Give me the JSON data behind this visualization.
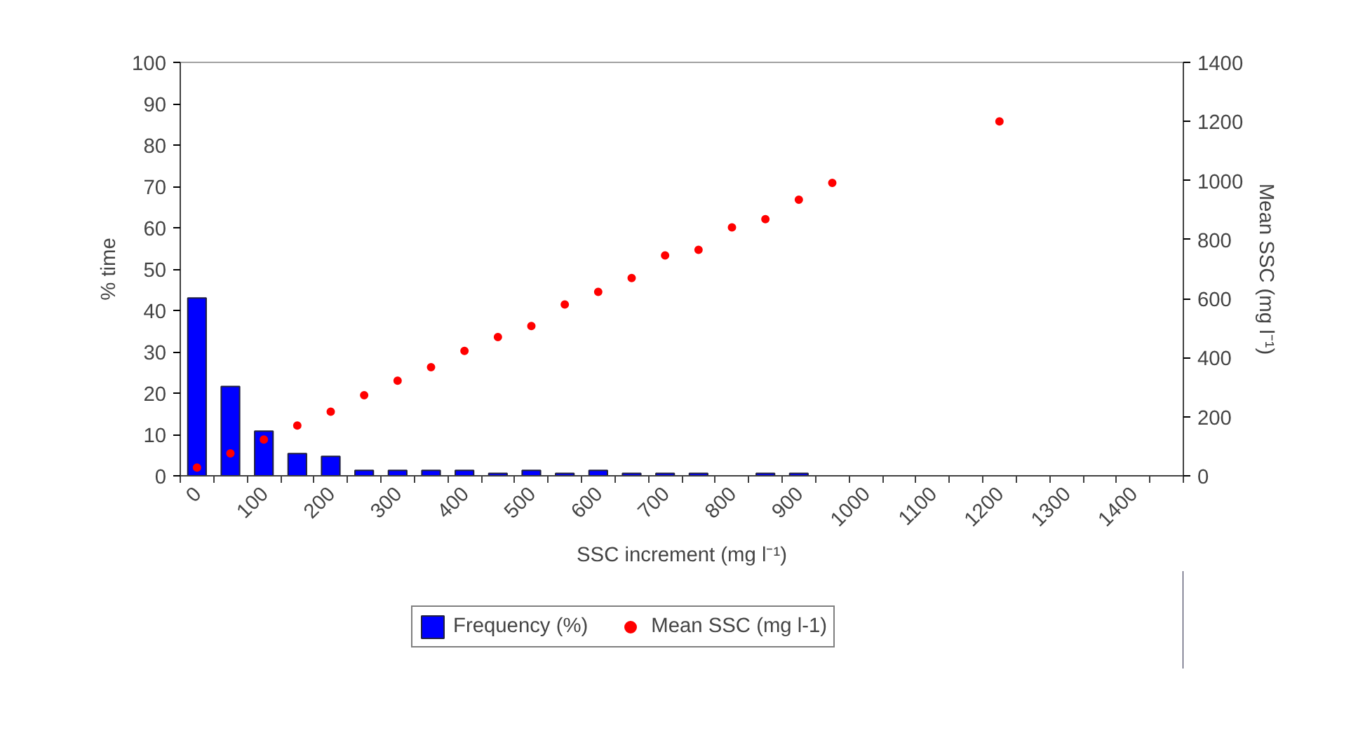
{
  "chart_data": {
    "type": "bar",
    "xlabel": "SSC increment (mg l⁻¹)",
    "ylabel": "% time",
    "y2label": "Mean SSC (mg l⁻¹)",
    "categories": [
      "0",
      null,
      "100",
      null,
      "200",
      null,
      "300",
      null,
      "400",
      null,
      "500",
      null,
      "600",
      null,
      "700",
      null,
      "800",
      null,
      "900",
      null,
      "1000",
      null,
      "1100",
      null,
      "1200",
      null,
      "1300",
      null,
      "1400",
      null
    ],
    "ylim": [
      0,
      100
    ],
    "yticks": [
      0,
      10,
      20,
      30,
      40,
      50,
      60,
      70,
      80,
      90,
      100
    ],
    "y2lim": [
      0,
      1400
    ],
    "y2ticks": [
      0,
      200,
      400,
      600,
      800,
      1000,
      1200,
      1400
    ],
    "grid": false,
    "legend": "bottom",
    "series": [
      {
        "name": "Frequency (%)",
        "color": "#0000ff",
        "values": [
          43,
          21.6,
          10.8,
          5.4,
          4.7,
          1.3,
          1.3,
          1.3,
          1.3,
          0.6,
          1.3,
          0.6,
          1.3,
          0.6,
          0.6,
          0.6,
          null,
          0.6,
          0.6,
          null,
          null,
          null,
          null,
          null,
          null,
          null,
          null,
          null,
          null,
          null
        ]
      },
      {
        "name": "Mean SSC (mg l-1)",
        "type": "scatter",
        "axis": "y2",
        "marker": "circle",
        "color": "#ff0000",
        "values": [
          28,
          76,
          123,
          170,
          217,
          273,
          322,
          368,
          423,
          470,
          507,
          580,
          623,
          670,
          746,
          765,
          841,
          869,
          935,
          992,
          null,
          null,
          null,
          null,
          1200,
          null,
          null,
          null,
          null,
          null
        ]
      }
    ]
  }
}
